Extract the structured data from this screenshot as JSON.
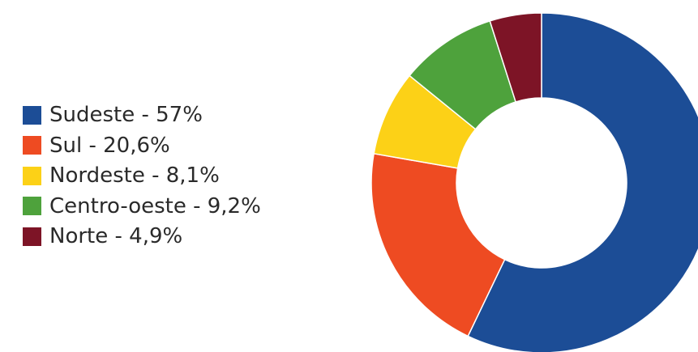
{
  "chart_data": {
    "type": "pie",
    "style": "donut",
    "legend_position": "left",
    "start_angle_deg": 0,
    "direction": "clockwise",
    "series": [
      {
        "name": "Sudeste",
        "label": "Sudeste - 57%",
        "value": 57,
        "color": "#1c4d96"
      },
      {
        "name": "Sul",
        "label": "Sul - 20,6%",
        "value": 20.6,
        "color": "#ee4b22"
      },
      {
        "name": "Nordeste",
        "label": "Nordeste - 8,1%",
        "value": 8.1,
        "color": "#fcd117"
      },
      {
        "name": "Centro-oeste",
        "label": "Centro-oeste - 9,2%",
        "value": 9.2,
        "color": "#4ea23c"
      },
      {
        "name": "Norte",
        "label": "Norte - 4,9%",
        "value": 4.9,
        "color": "#7d1426"
      }
    ]
  }
}
